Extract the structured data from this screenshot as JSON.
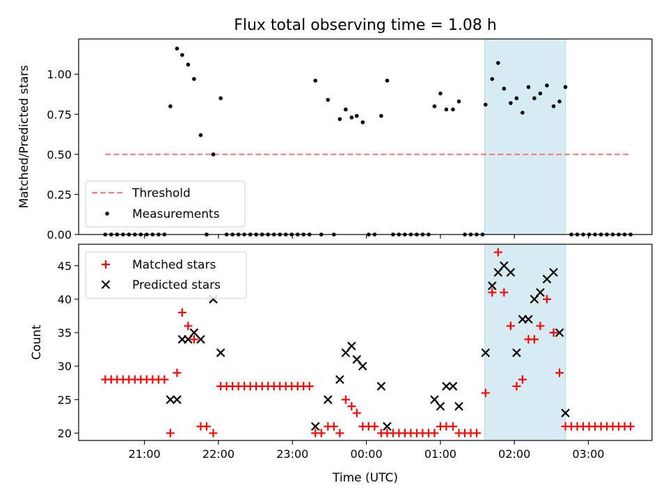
{
  "title": "Flux total observing time = 1.08 h",
  "colors": {
    "threshold": "#f08080",
    "measurements": "#000000",
    "matched": "#ff0000",
    "predicted": "#000000",
    "highlight": "#add8e6"
  },
  "chart_data": [
    {
      "type": "scatter",
      "panel": "top",
      "ylabel": "Matched/Predicted stars",
      "xlabel": "",
      "ylim": [
        0,
        1.22
      ],
      "yticks": [
        0.0,
        0.25,
        0.5,
        0.75,
        1.0
      ],
      "ytick_labels": [
        "0.00",
        "0.25",
        "0.50",
        "0.75",
        "1.00"
      ],
      "xticks_hours": [
        21,
        22,
        23,
        24,
        25,
        26,
        27
      ],
      "xlim_hours": [
        20.11,
        27.86
      ],
      "highlight_span_hours": [
        25.6,
        26.69
      ],
      "legend": {
        "position": "lower-left",
        "entries": [
          "Threshold",
          "Measurements"
        ]
      },
      "threshold": {
        "name": "Threshold",
        "value": 0.5,
        "x_range_hours": [
          20.47,
          27.57
        ],
        "style": "dashed"
      },
      "series": [
        {
          "name": "Measurements",
          "marker": "dot",
          "points": [
            [
              20.47,
              0
            ],
            [
              20.55,
              0
            ],
            [
              20.63,
              0
            ],
            [
              20.71,
              0
            ],
            [
              20.79,
              0
            ],
            [
              20.87,
              0
            ],
            [
              20.95,
              0
            ],
            [
              21.03,
              0
            ],
            [
              21.11,
              0
            ],
            [
              21.19,
              0
            ],
            [
              21.27,
              0
            ],
            [
              21.35,
              0.8
            ],
            [
              21.44,
              1.16
            ],
            [
              21.51,
              1.12
            ],
            [
              21.59,
              1.06
            ],
            [
              21.67,
              0.97
            ],
            [
              21.76,
              0.62
            ],
            [
              21.84,
              0
            ],
            [
              21.93,
              0.5
            ],
            [
              22.03,
              0.85
            ],
            [
              22.11,
              0
            ],
            [
              22.19,
              0
            ],
            [
              22.27,
              0
            ],
            [
              22.35,
              0
            ],
            [
              22.43,
              0
            ],
            [
              22.51,
              0
            ],
            [
              22.59,
              0
            ],
            [
              22.67,
              0
            ],
            [
              22.75,
              0
            ],
            [
              22.83,
              0
            ],
            [
              22.91,
              0
            ],
            [
              22.99,
              0
            ],
            [
              23.07,
              0
            ],
            [
              23.15,
              0
            ],
            [
              23.23,
              0
            ],
            [
              23.31,
              0.96
            ],
            [
              23.39,
              0
            ],
            [
              23.48,
              0.84
            ],
            [
              23.56,
              0
            ],
            [
              23.64,
              0.72
            ],
            [
              23.72,
              0.78
            ],
            [
              23.8,
              0.73
            ],
            [
              23.87,
              0.74
            ],
            [
              23.95,
              0.7
            ],
            [
              24.03,
              0
            ],
            [
              24.11,
              0
            ],
            [
              24.2,
              0.74
            ],
            [
              24.28,
              0.96
            ],
            [
              24.36,
              0
            ],
            [
              24.44,
              0
            ],
            [
              24.52,
              0
            ],
            [
              24.6,
              0
            ],
            [
              24.68,
              0
            ],
            [
              24.76,
              0
            ],
            [
              24.84,
              0
            ],
            [
              24.92,
              0.8
            ],
            [
              25.0,
              0.88
            ],
            [
              25.08,
              0.78
            ],
            [
              25.17,
              0.78
            ],
            [
              25.25,
              0.83
            ],
            [
              25.33,
              0
            ],
            [
              25.41,
              0
            ],
            [
              25.49,
              0
            ],
            [
              25.57,
              0
            ],
            [
              25.61,
              0.81
            ],
            [
              25.7,
              0.97
            ],
            [
              25.78,
              1.07
            ],
            [
              25.86,
              0.91
            ],
            [
              25.95,
              0.82
            ],
            [
              26.03,
              0.85
            ],
            [
              26.11,
              0.76
            ],
            [
              26.19,
              0.92
            ],
            [
              26.27,
              0.85
            ],
            [
              26.35,
              0.88
            ],
            [
              26.44,
              0.93
            ],
            [
              26.53,
              0.8
            ],
            [
              26.61,
              0.83
            ],
            [
              26.69,
              0.92
            ],
            [
              26.77,
              0
            ],
            [
              26.85,
              0
            ],
            [
              26.93,
              0
            ],
            [
              27.01,
              0
            ],
            [
              27.09,
              0
            ],
            [
              27.17,
              0
            ],
            [
              27.25,
              0
            ],
            [
              27.33,
              0
            ],
            [
              27.41,
              0
            ],
            [
              27.49,
              0
            ],
            [
              27.57,
              0
            ]
          ]
        }
      ]
    },
    {
      "type": "scatter",
      "panel": "bottom",
      "ylabel": "Count",
      "xlabel": "Time (UTC)",
      "ylim": [
        18.9,
        48.2
      ],
      "yticks": [
        20,
        25,
        30,
        35,
        40,
        45
      ],
      "ytick_labels": [
        "20",
        "25",
        "30",
        "35",
        "40",
        "45"
      ],
      "xticks_hours": [
        21,
        22,
        23,
        24,
        25,
        26,
        27
      ],
      "xtick_labels": [
        "21:00",
        "22:00",
        "23:00",
        "00:00",
        "01:00",
        "02:00",
        "03:00"
      ],
      "xlim_hours": [
        20.11,
        27.86
      ],
      "highlight_span_hours": [
        25.6,
        26.69
      ],
      "legend": {
        "position": "upper-left",
        "entries": [
          "Matched stars",
          "Predicted stars"
        ]
      },
      "series": [
        {
          "name": "Matched stars",
          "marker": "plus",
          "points": [
            [
              20.47,
              28
            ],
            [
              20.55,
              28
            ],
            [
              20.63,
              28
            ],
            [
              20.71,
              28
            ],
            [
              20.79,
              28
            ],
            [
              20.87,
              28
            ],
            [
              20.95,
              28
            ],
            [
              21.03,
              28
            ],
            [
              21.11,
              28
            ],
            [
              21.19,
              28
            ],
            [
              21.27,
              28
            ],
            [
              21.35,
              20
            ],
            [
              21.44,
              29
            ],
            [
              21.51,
              38
            ],
            [
              21.59,
              36
            ],
            [
              21.67,
              34
            ],
            [
              21.76,
              21
            ],
            [
              21.84,
              21
            ],
            [
              21.93,
              20
            ],
            [
              22.03,
              27
            ],
            [
              22.11,
              27
            ],
            [
              22.19,
              27
            ],
            [
              22.27,
              27
            ],
            [
              22.35,
              27
            ],
            [
              22.43,
              27
            ],
            [
              22.51,
              27
            ],
            [
              22.59,
              27
            ],
            [
              22.67,
              27
            ],
            [
              22.75,
              27
            ],
            [
              22.83,
              27
            ],
            [
              22.91,
              27
            ],
            [
              22.99,
              27
            ],
            [
              23.07,
              27
            ],
            [
              23.15,
              27
            ],
            [
              23.23,
              27
            ],
            [
              23.31,
              20
            ],
            [
              23.39,
              20
            ],
            [
              23.48,
              21
            ],
            [
              23.56,
              21
            ],
            [
              23.64,
              20
            ],
            [
              23.72,
              25
            ],
            [
              23.8,
              24
            ],
            [
              23.87,
              23
            ],
            [
              23.95,
              21
            ],
            [
              24.03,
              21
            ],
            [
              24.11,
              21
            ],
            [
              24.2,
              20
            ],
            [
              24.28,
              20
            ],
            [
              24.36,
              20
            ],
            [
              24.44,
              20
            ],
            [
              24.52,
              20
            ],
            [
              24.6,
              20
            ],
            [
              24.68,
              20
            ],
            [
              24.76,
              20
            ],
            [
              24.84,
              20
            ],
            [
              24.92,
              20
            ],
            [
              25.0,
              21
            ],
            [
              25.08,
              21
            ],
            [
              25.17,
              21
            ],
            [
              25.25,
              20
            ],
            [
              25.33,
              20
            ],
            [
              25.41,
              20
            ],
            [
              25.49,
              20
            ],
            [
              25.61,
              26
            ],
            [
              25.7,
              41
            ],
            [
              25.78,
              47
            ],
            [
              25.86,
              41
            ],
            [
              25.95,
              36
            ],
            [
              26.03,
              27
            ],
            [
              26.11,
              28
            ],
            [
              26.19,
              34
            ],
            [
              26.27,
              34
            ],
            [
              26.35,
              36
            ],
            [
              26.44,
              40
            ],
            [
              26.53,
              35
            ],
            [
              26.61,
              29
            ],
            [
              26.69,
              21
            ],
            [
              26.77,
              21
            ],
            [
              26.85,
              21
            ],
            [
              26.93,
              21
            ],
            [
              27.01,
              21
            ],
            [
              27.09,
              21
            ],
            [
              27.17,
              21
            ],
            [
              27.25,
              21
            ],
            [
              27.33,
              21
            ],
            [
              27.41,
              21
            ],
            [
              27.49,
              21
            ],
            [
              27.57,
              21
            ]
          ]
        },
        {
          "name": "Predicted stars",
          "marker": "x",
          "points": [
            [
              21.35,
              25
            ],
            [
              21.44,
              25
            ],
            [
              21.51,
              34
            ],
            [
              21.59,
              34
            ],
            [
              21.67,
              35
            ],
            [
              21.76,
              34
            ],
            [
              21.93,
              40
            ],
            [
              22.03,
              32
            ],
            [
              23.31,
              21
            ],
            [
              23.48,
              25
            ],
            [
              23.64,
              28
            ],
            [
              23.72,
              32
            ],
            [
              23.8,
              33
            ],
            [
              23.87,
              31
            ],
            [
              23.95,
              30
            ],
            [
              24.2,
              27
            ],
            [
              24.28,
              21
            ],
            [
              24.92,
              25
            ],
            [
              25.0,
              24
            ],
            [
              25.08,
              27
            ],
            [
              25.17,
              27
            ],
            [
              25.25,
              24
            ],
            [
              25.61,
              32
            ],
            [
              25.7,
              42
            ],
            [
              25.78,
              44
            ],
            [
              25.86,
              45
            ],
            [
              25.95,
              44
            ],
            [
              26.03,
              32
            ],
            [
              26.11,
              37
            ],
            [
              26.19,
              37
            ],
            [
              26.27,
              40
            ],
            [
              26.35,
              41
            ],
            [
              26.44,
              43
            ],
            [
              26.53,
              44
            ],
            [
              26.61,
              35
            ],
            [
              26.69,
              23
            ]
          ]
        }
      ]
    }
  ]
}
